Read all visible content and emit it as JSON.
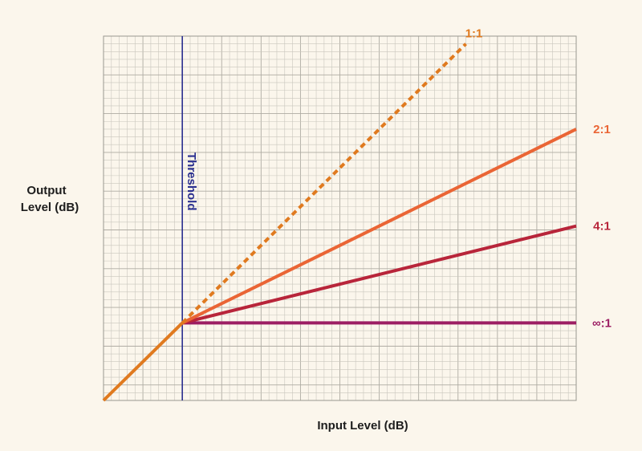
{
  "chart_data": {
    "type": "line",
    "title": "",
    "xlabel": "Input Level (dB)",
    "ylabel_lines": [
      "Output",
      "Level (dB)"
    ],
    "xlim": [
      0,
      60
    ],
    "ylim": [
      0,
      47
    ],
    "grid": true,
    "threshold": {
      "label": "Threshold",
      "x": 10,
      "color": "#2a2f8f"
    },
    "knee": {
      "x": 10,
      "y": 10
    },
    "series": [
      {
        "name": "1:1",
        "ratio": 1,
        "dashed": true,
        "color": "#e07a1f",
        "points": [
          [
            0,
            0
          ],
          [
            10,
            10
          ],
          [
            46,
            46
          ]
        ]
      },
      {
        "name": "2:1",
        "ratio": 2,
        "dashed": false,
        "color": "#ea6535",
        "points": [
          [
            0,
            0
          ],
          [
            10,
            10
          ],
          [
            60,
            35
          ]
        ]
      },
      {
        "name": "4:1",
        "ratio": 4,
        "dashed": false,
        "color": "#b8253a",
        "points": [
          [
            0,
            0
          ],
          [
            10,
            10
          ],
          [
            60,
            22.5
          ]
        ]
      },
      {
        "name": "∞:1",
        "ratio": "inf",
        "dashed": false,
        "color": "#9c1e63",
        "points": [
          [
            0,
            0
          ],
          [
            10,
            10
          ],
          [
            60,
            10
          ]
        ]
      }
    ],
    "base_color": "#e07a1f"
  }
}
